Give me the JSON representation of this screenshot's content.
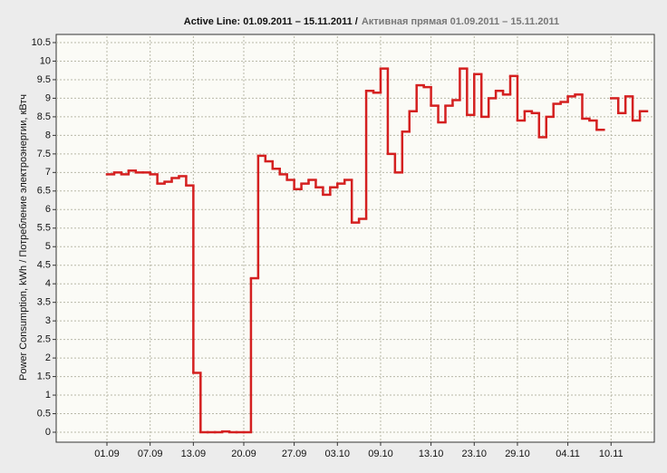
{
  "chart_data": {
    "type": "step",
    "title": "Active Line: 01.09.2011 – 15.11.2011 /",
    "title_ru": "Активная прямая 01.09.2011 – 15.11.2011",
    "y_label": "Power Consumption, kWh / Потребление электроэнергии, кВтч",
    "categories": [
      "01.09",
      null,
      null,
      null,
      null,
      null,
      "07.09",
      null,
      null,
      null,
      null,
      null,
      "13.09",
      null,
      null,
      null,
      null,
      null,
      null,
      "20.09",
      null,
      null,
      null,
      null,
      null,
      null,
      "27.09",
      null,
      null,
      null,
      null,
      null,
      "03.10",
      null,
      null,
      null,
      null,
      null,
      "09.10",
      null,
      null,
      null,
      null,
      null,
      null,
      "13.10",
      null,
      null,
      null,
      null,
      null,
      "23.10",
      null,
      null,
      null,
      null,
      null,
      "29.10",
      null,
      null,
      null,
      null,
      null,
      null,
      "04.11",
      null,
      null,
      null,
      null,
      null,
      "10.11",
      null,
      null,
      null,
      null
    ],
    "values": [
      6.95,
      7.0,
      6.95,
      7.05,
      7.0,
      7.0,
      6.95,
      6.7,
      6.75,
      6.85,
      6.9,
      6.65,
      1.6,
      0,
      0,
      0,
      0.02,
      0,
      0,
      0,
      4.15,
      7.45,
      7.3,
      7.1,
      6.95,
      6.8,
      6.55,
      6.7,
      6.8,
      6.6,
      6.4,
      6.6,
      6.7,
      6.8,
      5.65,
      5.75,
      9.2,
      9.15,
      9.8,
      7.5,
      7.0,
      8.1,
      8.65,
      9.35,
      9.3,
      8.8,
      8.35,
      8.8,
      8.95,
      9.8,
      8.55,
      9.65,
      8.5,
      9.0,
      9.2,
      9.1,
      9.6,
      8.4,
      8.65,
      8.6,
      7.95,
      8.5,
      8.85,
      8.9,
      9.05,
      9.1,
      8.45,
      8.4,
      8.15,
      null,
      9.0,
      8.6,
      9.05,
      8.4,
      8.65
    ],
    "color": "#d42020",
    "ylim": [
      0,
      10.5
    ],
    "yticks": [
      0,
      0.5,
      1,
      1.5,
      2,
      2.5,
      3,
      3.5,
      4,
      4.5,
      5,
      5.5,
      6,
      6.5,
      7,
      7.5,
      8,
      8.5,
      9,
      9.5,
      10,
      10.5
    ],
    "grid": true
  }
}
